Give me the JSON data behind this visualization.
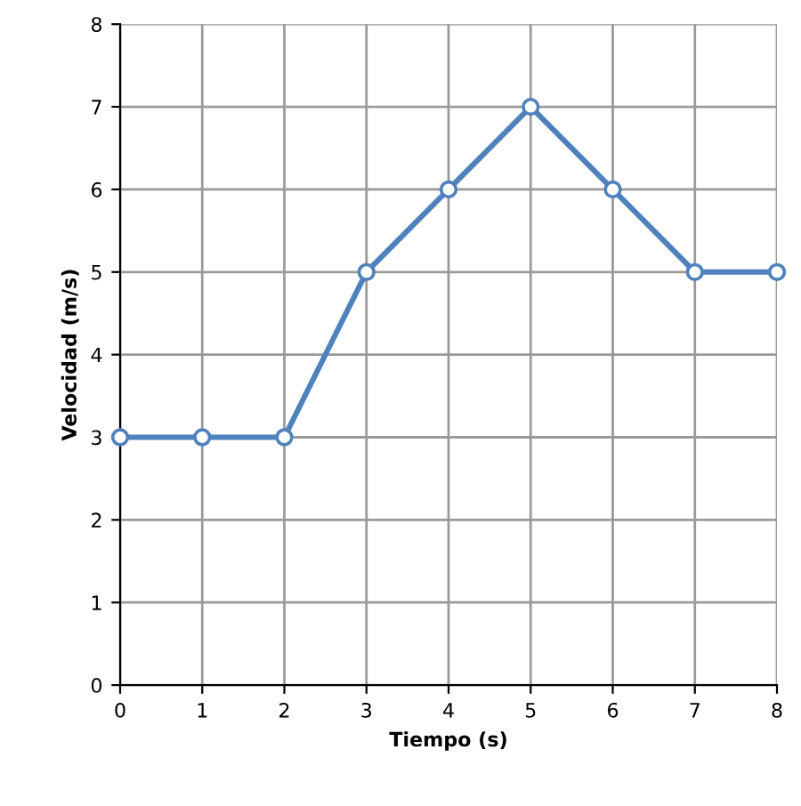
{
  "chart_data": {
    "type": "line",
    "xlabel": "Tiempo (s)",
    "ylabel": "Velocidad (m/s)",
    "x": [
      0,
      1,
      2,
      3,
      4,
      5,
      6,
      7,
      8
    ],
    "series": [
      {
        "color": "#4f81bd",
        "values": [
          3,
          3,
          3,
          5,
          6,
          7,
          6,
          5,
          5
        ]
      }
    ],
    "xlim": [
      0,
      8
    ],
    "ylim": [
      0,
      8
    ],
    "xticks": [
      0,
      1,
      2,
      3,
      4,
      5,
      6,
      7,
      8
    ],
    "yticks": [
      0,
      1,
      2,
      3,
      4,
      5,
      6,
      7,
      8
    ],
    "grid": true,
    "marker": "circle",
    "line_style": "solid"
  }
}
